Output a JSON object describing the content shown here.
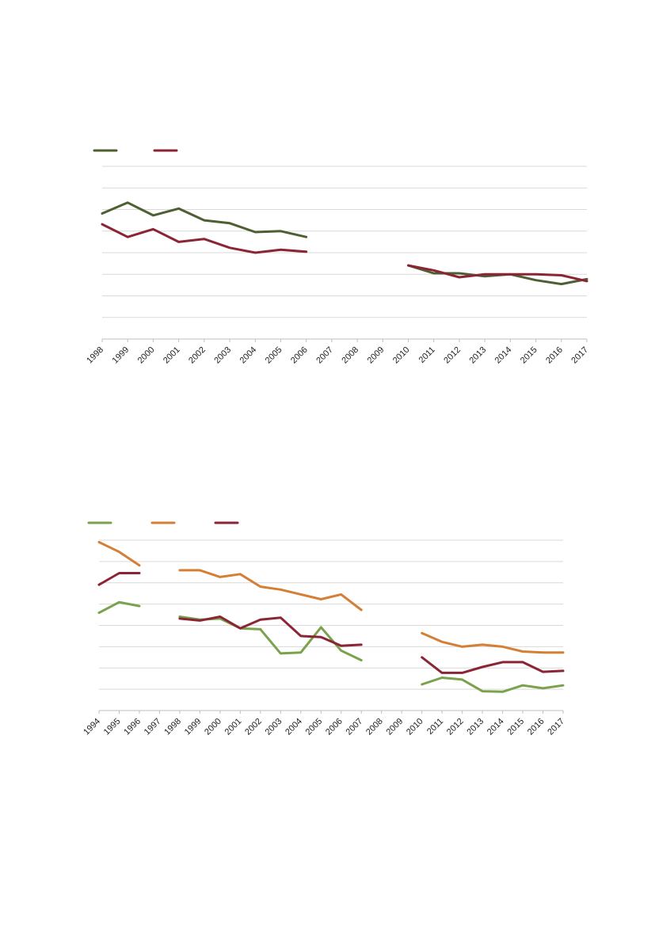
{
  "chart_data": [
    {
      "type": "line",
      "title": "",
      "xlabel": "",
      "ylabel": "",
      "categories": [
        "1998",
        "1999",
        "2000",
        "2001",
        "2002",
        "2003",
        "2004",
        "2005",
        "2006",
        "2007",
        "2008",
        "2009",
        "2010",
        "2011",
        "2012",
        "2013",
        "2014",
        "2015",
        "2016",
        "2017"
      ],
      "ylim": [
        0,
        8.8
      ],
      "gridlines": 9,
      "grid": true,
      "legend": "top-left",
      "series": [
        {
          "color": "#4e5f31",
          "values": [
            6.4,
            6.95,
            6.3,
            6.65,
            6.05,
            5.9,
            5.45,
            5.5,
            5.2,
            null,
            null,
            null,
            3.75,
            3.35,
            3.35,
            3.2,
            3.3,
            3.0,
            2.8,
            3.05
          ]
        },
        {
          "color": "#8b2535",
          "values": [
            5.85,
            5.2,
            5.6,
            4.95,
            5.1,
            4.65,
            4.4,
            4.55,
            4.45,
            null,
            null,
            null,
            3.75,
            3.5,
            3.15,
            3.3,
            3.3,
            3.3,
            3.25,
            2.95
          ]
        }
      ]
    },
    {
      "type": "line",
      "title": "",
      "xlabel": "",
      "ylabel": "",
      "categories": [
        "1994",
        "1995",
        "1996",
        "1997",
        "1998",
        "1999",
        "2000",
        "2001",
        "2002",
        "2003",
        "2004",
        "2005",
        "2006",
        "2007",
        "2008",
        "2009",
        "2010",
        "2011",
        "2012",
        "2013",
        "2014",
        "2015",
        "2016",
        "2017"
      ],
      "ylim": [
        0,
        8.8
      ],
      "gridlines": 9,
      "grid": true,
      "legend": "top-left",
      "series": [
        {
          "color": "#7aa24d",
          "values": [
            5.05,
            5.6,
            5.4,
            null,
            4.85,
            4.7,
            4.75,
            4.25,
            4.2,
            2.95,
            3.0,
            4.3,
            3.1,
            2.6,
            null,
            null,
            1.35,
            1.7,
            1.6,
            1.0,
            0.97,
            1.3,
            1.15,
            1.3
          ]
        },
        {
          "color": "#d47f35",
          "values": [
            8.7,
            8.2,
            7.5,
            null,
            7.25,
            7.25,
            6.9,
            7.05,
            6.4,
            6.25,
            6.0,
            5.75,
            6.0,
            5.2,
            null,
            null,
            4.0,
            3.55,
            3.3,
            3.4,
            3.3,
            3.05,
            3.0,
            3.0
          ]
        },
        {
          "color": "#8b2535",
          "values": [
            6.5,
            7.1,
            7.1,
            null,
            4.75,
            4.65,
            4.85,
            4.25,
            4.7,
            4.8,
            3.85,
            3.8,
            3.35,
            3.4,
            null,
            null,
            2.75,
            1.95,
            1.95,
            2.25,
            2.5,
            2.5,
            2.0,
            2.05
          ]
        }
      ]
    }
  ]
}
